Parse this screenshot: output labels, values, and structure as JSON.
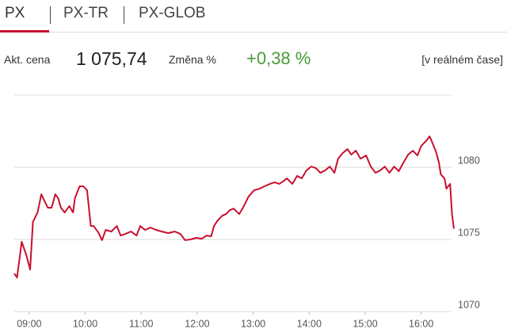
{
  "tabs": [
    "PX",
    "PX-TR",
    "PX-GLOB"
  ],
  "quote": {
    "price_label": "Akt. cena",
    "price": "1 075,74",
    "change_label": "Změna %",
    "change": "+0,38 %",
    "realtime": "[v reálném čase]"
  },
  "chart_data": {
    "type": "line",
    "x": [
      "08:44",
      "08:47",
      "08:52",
      "08:57",
      "09:01",
      "09:04",
      "09:09",
      "09:13",
      "09:17",
      "09:20",
      "09:24",
      "09:28",
      "09:31",
      "09:34",
      "09:38",
      "09:43",
      "09:47",
      "09:49",
      "09:54",
      "09:58",
      "10:02",
      "10:06",
      "10:09",
      "10:14",
      "10:18",
      "10:22",
      "10:28",
      "10:34",
      "10:38",
      "10:43",
      "10:49",
      "10:55",
      "10:59",
      "11:04",
      "11:10",
      "11:16",
      "11:22",
      "11:29",
      "11:36",
      "11:42",
      "11:47",
      "11:53",
      "11:59",
      "12:05",
      "12:10",
      "12:15",
      "12:18",
      "12:22",
      "12:27",
      "12:31",
      "12:35",
      "12:39",
      "12:45",
      "12:50",
      "12:55",
      "13:01",
      "13:07",
      "13:12",
      "13:18",
      "13:23",
      "13:28",
      "13:33",
      "13:36",
      "13:42",
      "13:47",
      "13:52",
      "13:57",
      "14:02",
      "14:07",
      "14:12",
      "14:17",
      "14:22",
      "14:27",
      "14:31",
      "14:36",
      "14:41",
      "14:45",
      "14:50",
      "14:55",
      "15:01",
      "15:06",
      "15:11",
      "15:16",
      "15:21",
      "15:26",
      "15:31",
      "15:36",
      "15:41",
      "15:46",
      "15:51",
      "15:56",
      "16:00",
      "16:05",
      "16:09",
      "16:12",
      "16:16",
      "16:19",
      "16:21",
      "16:25",
      "16:27",
      "16:31",
      "16:33",
      "16:35"
    ],
    "series": [
      {
        "color": "#c8102e",
        "values": [
          1072.64,
          1072.36,
          1074.84,
          1073.9,
          1072.91,
          1076.21,
          1076.87,
          1078.13,
          1077.58,
          1077.2,
          1077.2,
          1078.13,
          1077.86,
          1077.2,
          1076.87,
          1077.31,
          1076.87,
          1077.86,
          1078.68,
          1078.68,
          1078.41,
          1075.93,
          1075.93,
          1075.49,
          1074.95,
          1075.66,
          1075.55,
          1075.93,
          1075.27,
          1075.38,
          1075.55,
          1075.27,
          1075.93,
          1075.66,
          1075.82,
          1075.66,
          1075.55,
          1075.44,
          1075.55,
          1075.38,
          1074.95,
          1075.0,
          1075.11,
          1075.05,
          1075.27,
          1075.22,
          1075.93,
          1076.32,
          1076.65,
          1076.76,
          1077.03,
          1077.14,
          1076.76,
          1077.31,
          1077.97,
          1078.41,
          1078.52,
          1078.68,
          1078.85,
          1078.96,
          1078.85,
          1079.07,
          1079.23,
          1078.85,
          1079.4,
          1079.23,
          1079.78,
          1080.05,
          1079.95,
          1079.62,
          1079.78,
          1080.05,
          1079.62,
          1080.6,
          1080.99,
          1081.26,
          1080.88,
          1081.15,
          1080.6,
          1080.82,
          1080.05,
          1079.62,
          1079.78,
          1080.05,
          1079.62,
          1080.05,
          1079.73,
          1080.33,
          1080.88,
          1081.15,
          1080.82,
          1081.48,
          1081.81,
          1082.14,
          1081.7,
          1081.04,
          1080.33,
          1079.51,
          1079.23,
          1078.52,
          1078.85,
          1076.76,
          1075.74
        ]
      }
    ],
    "xlim": [
      "08:44",
      "16:41"
    ],
    "xticks": [
      "09:00",
      "10:00",
      "11:00",
      "12:00",
      "13:00",
      "14:00",
      "15:00",
      "16:00"
    ],
    "ylim": [
      1070,
      1085
    ],
    "yticks": [
      1070,
      1075,
      1080
    ],
    "grid": true
  }
}
